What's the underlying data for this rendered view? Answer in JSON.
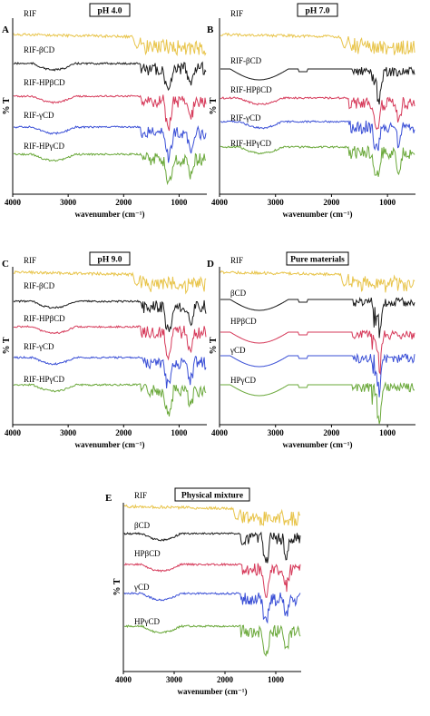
{
  "colors": {
    "RIF": "#e8c44a",
    "black": "#1a1a1a",
    "HP": "#d63a5a",
    "gamma": "#3a4fd6",
    "green": "#6aa83a"
  },
  "chart_data": [
    {
      "type": "line",
      "panel": "A",
      "title": "pH 4.0",
      "xlabel": "wavenumber (cm⁻¹)",
      "ylabel": "% T",
      "xlim": [
        4000,
        500
      ],
      "xticks": [
        "4000",
        "3000",
        "2000",
        "1000"
      ],
      "series": [
        {
          "name": "RIF",
          "color_key": "RIF"
        },
        {
          "name": "RIF-βCD",
          "color_key": "black"
        },
        {
          "name": "RIF-HPβCD",
          "color_key": "HP"
        },
        {
          "name": "RIF-γCD",
          "color_key": "gamma"
        },
        {
          "name": "RIF-HPγCD",
          "color_key": "green"
        }
      ]
    },
    {
      "type": "line",
      "panel": "B",
      "title": "pH 7.0",
      "xlabel": "wavenumber (cm⁻¹)",
      "ylabel": "% T",
      "xlim": [
        4000,
        500
      ],
      "xticks": [
        "4000",
        "3000",
        "2000",
        "1000"
      ],
      "series": [
        {
          "name": "RIF",
          "color_key": "RIF"
        },
        {
          "name": "RIF-βCD",
          "color_key": "black"
        },
        {
          "name": "RIF-HPβCD",
          "color_key": "HP"
        },
        {
          "name": "RIF-γCD",
          "color_key": "gamma"
        },
        {
          "name": "RIF-HPγCD",
          "color_key": "green"
        }
      ]
    },
    {
      "type": "line",
      "panel": "C",
      "title": "pH 9.0",
      "xlabel": "wavenumber (cm⁻¹)",
      "ylabel": "% T",
      "xlim": [
        4000,
        500
      ],
      "xticks": [
        "4000",
        "3000",
        "2000",
        "1000"
      ],
      "series": [
        {
          "name": "RIF",
          "color_key": "RIF"
        },
        {
          "name": "RIF-βCD",
          "color_key": "black"
        },
        {
          "name": "RIF-HPβCD",
          "color_key": "HP"
        },
        {
          "name": "RIF-γCD",
          "color_key": "gamma"
        },
        {
          "name": "RIF-HPγCD",
          "color_key": "green"
        }
      ]
    },
    {
      "type": "line",
      "panel": "D",
      "title": "Pure materials",
      "xlabel": "wavenumber (cm⁻¹)",
      "ylabel": "% T",
      "xlim": [
        4000,
        500
      ],
      "xticks": [
        "4000",
        "3000",
        "2000",
        "1000"
      ],
      "series": [
        {
          "name": "RIF",
          "color_key": "RIF"
        },
        {
          "name": "βCD",
          "color_key": "black"
        },
        {
          "name": "HPβCD",
          "color_key": "HP"
        },
        {
          "name": "γCD",
          "color_key": "gamma"
        },
        {
          "name": "HPγCD",
          "color_key": "green"
        }
      ]
    },
    {
      "type": "line",
      "panel": "E",
      "title": "Physical mixture",
      "xlabel": "wavenumber (cm⁻¹)",
      "ylabel": "% T",
      "xlim": [
        4000,
        500
      ],
      "xticks": [
        "4000",
        "3000",
        "2000",
        "1000"
      ],
      "series": [
        {
          "name": "RIF",
          "color_key": "RIF"
        },
        {
          "name": "βCD",
          "color_key": "black"
        },
        {
          "name": "HPβCD",
          "color_key": "HP"
        },
        {
          "name": "γCD",
          "color_key": "gamma"
        },
        {
          "name": "HPγCD",
          "color_key": "green"
        }
      ]
    }
  ]
}
